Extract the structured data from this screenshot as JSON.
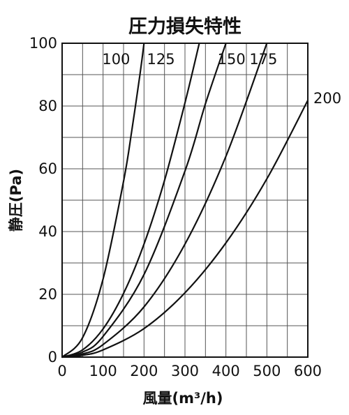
{
  "chart_data": {
    "type": "line",
    "title": "圧力損失特性",
    "xlabel": "風量(m³/h)",
    "ylabel": "静圧(Pa)",
    "xlim": [
      0,
      600
    ],
    "ylim": [
      0,
      100
    ],
    "x_ticks": [
      0,
      100,
      200,
      300,
      400,
      500,
      600
    ],
    "y_ticks": [
      0,
      20,
      40,
      60,
      80,
      100
    ],
    "grid": true,
    "grid_x_step": 50,
    "grid_y_step": 10,
    "series": [
      {
        "name": "100",
        "points": [
          [
            0,
            0
          ],
          [
            50,
            6.2
          ],
          [
            100,
            24.9
          ],
          [
            150,
            56
          ],
          [
            170,
            72
          ],
          [
            190,
            90
          ],
          [
            200,
            100
          ]
        ]
      },
      {
        "name": "125",
        "points": [
          [
            0,
            0
          ],
          [
            50,
            2.3
          ],
          [
            100,
            9
          ],
          [
            150,
            20.3
          ],
          [
            200,
            36
          ],
          [
            250,
            56.3
          ],
          [
            300,
            81
          ],
          [
            335,
            100
          ]
        ]
      },
      {
        "name": "150",
        "points": [
          [
            0,
            0
          ],
          [
            50,
            1.6
          ],
          [
            100,
            6.6
          ],
          [
            200,
            26.3
          ],
          [
            300,
            59.3
          ],
          [
            350,
            80.7
          ],
          [
            400,
            100
          ]
        ]
      },
      {
        "name": "175",
        "points": [
          [
            0,
            0
          ],
          [
            50,
            1
          ],
          [
            100,
            4
          ],
          [
            200,
            16
          ],
          [
            300,
            36
          ],
          [
            400,
            64
          ],
          [
            500,
            100
          ]
        ]
      },
      {
        "name": "200",
        "points": [
          [
            0,
            0
          ],
          [
            50,
            0.6
          ],
          [
            100,
            2.3
          ],
          [
            200,
            9.1
          ],
          [
            300,
            20.5
          ],
          [
            400,
            36.4
          ],
          [
            500,
            56.8
          ],
          [
            600,
            81.8
          ]
        ]
      }
    ]
  }
}
